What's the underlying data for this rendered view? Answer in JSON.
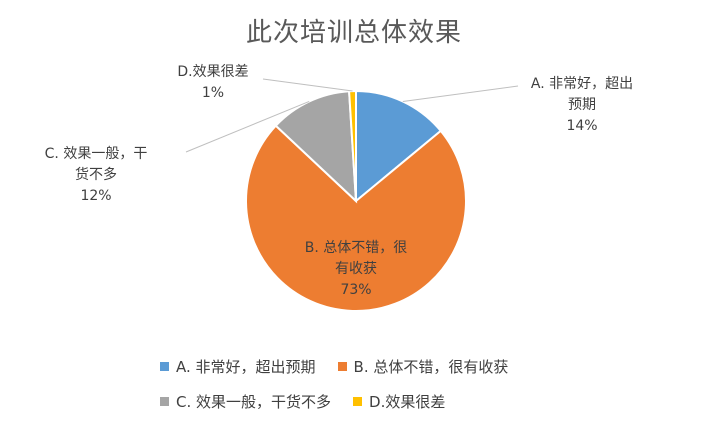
{
  "chart_data": {
    "type": "pie",
    "title": "此次培训总体效果",
    "slices": [
      {
        "name": "A. 非常好，超出预期",
        "label_lines": [
          "A. 非常好，超出",
          "预期"
        ],
        "value": 14,
        "value_label": "14%",
        "color": "#5B9BD5"
      },
      {
        "name": "B. 总体不错，很有收获",
        "label_lines": [
          "B. 总体不错，很",
          "有收获"
        ],
        "value": 73,
        "value_label": "73%",
        "color": "#ED7D31"
      },
      {
        "name": "C. 效果一般，干货不多",
        "label_lines": [
          "C. 效果一般，干",
          "货不多"
        ],
        "value": 12,
        "value_label": "12%",
        "color": "#A5A5A5"
      },
      {
        "name": "D.效果很差",
        "label_lines": [
          "D.效果很差"
        ],
        "value": 1,
        "value_label": "1%",
        "color": "#FFC000"
      }
    ],
    "legend_position": "bottom"
  }
}
